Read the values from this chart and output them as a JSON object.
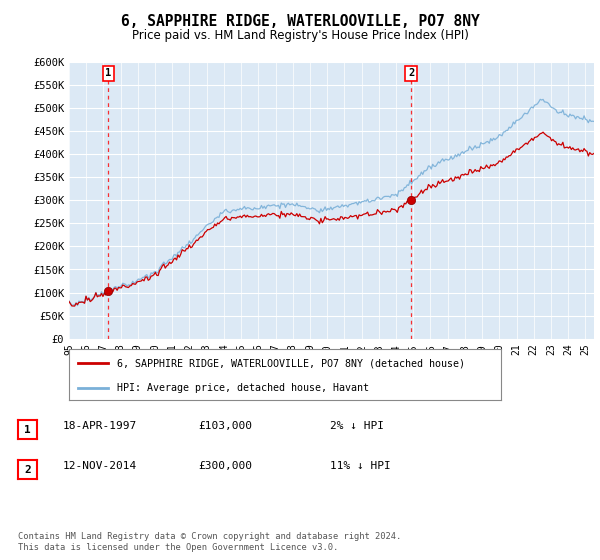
{
  "title": "6, SAPPHIRE RIDGE, WATERLOOVILLE, PO7 8NY",
  "subtitle": "Price paid vs. HM Land Registry's House Price Index (HPI)",
  "title_fontsize": 10.5,
  "subtitle_fontsize": 8.5,
  "ylabel_ticks": [
    "£0",
    "£50K",
    "£100K",
    "£150K",
    "£200K",
    "£250K",
    "£300K",
    "£350K",
    "£400K",
    "£450K",
    "£500K",
    "£550K",
    "£600K"
  ],
  "ylim": [
    0,
    600000
  ],
  "xlim_start": 1995.0,
  "xlim_end": 2025.5,
  "background_color": "#dce9f5",
  "grid_color": "#ffffff",
  "sale1_date": 1997.29,
  "sale1_price": 103000,
  "sale1_label": "1",
  "sale2_date": 2014.87,
  "sale2_price": 300000,
  "sale2_label": "2",
  "hpi_color": "#7ab0d8",
  "price_color": "#cc0000",
  "legend_label1": "6, SAPPHIRE RIDGE, WATERLOOVILLE, PO7 8NY (detached house)",
  "legend_label2": "HPI: Average price, detached house, Havant",
  "note1_num": "1",
  "note1_date": "18-APR-1997",
  "note1_price": "£103,000",
  "note1_rel": "2% ↓ HPI",
  "note2_num": "2",
  "note2_date": "12-NOV-2014",
  "note2_price": "£300,000",
  "note2_rel": "11% ↓ HPI",
  "footer": "Contains HM Land Registry data © Crown copyright and database right 2024.\nThis data is licensed under the Open Government Licence v3.0."
}
